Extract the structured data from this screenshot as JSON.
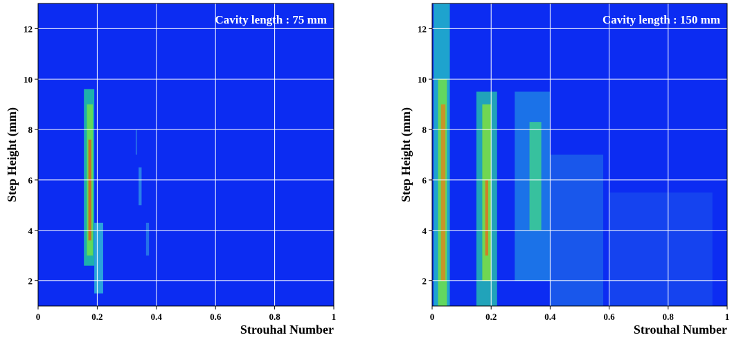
{
  "chart_data": [
    {
      "type": "heatmap",
      "annotation": "Cavity length : 75 mm",
      "xlabel": "Strouhal Number",
      "ylabel": "Step Height (mm)",
      "background": "#0c2cf2",
      "grid": true,
      "xlim": [
        0,
        1
      ],
      "ylim": [
        1,
        13
      ],
      "xticks": [
        0,
        0.2,
        0.4,
        0.6,
        0.8,
        1
      ],
      "yticks": [
        2,
        4,
        6,
        8,
        10,
        12
      ],
      "ridges": [
        {
          "x": [
            0.155,
            0.19
          ],
          "y": [
            2.6,
            9.6
          ],
          "color": "#22c8a0"
        },
        {
          "x": [
            0.165,
            0.185
          ],
          "y": [
            3,
            9
          ],
          "color": "#6ee04a"
        },
        {
          "x": [
            0.17,
            0.18
          ],
          "y": [
            3.6,
            7.6
          ],
          "color": "#e05a20"
        },
        {
          "x": [
            0.19,
            0.22
          ],
          "y": [
            1.5,
            4.3
          ],
          "color": "#30b8d8"
        },
        {
          "x": [
            0.34,
            0.35
          ],
          "y": [
            5,
            6.5
          ],
          "color": "#2f8fe6"
        },
        {
          "x": [
            0.365,
            0.375
          ],
          "y": [
            3,
            4.3
          ],
          "color": "#2a7fe8"
        },
        {
          "x": [
            0.33,
            0.335
          ],
          "y": [
            7,
            8
          ],
          "color": "#2a6ee8"
        }
      ]
    },
    {
      "type": "heatmap",
      "annotation": "Cavity length : 150 mm",
      "xlabel": "Strouhal Number",
      "ylabel": "Step Height (mm)",
      "background": "#0c2cf2",
      "grid": true,
      "xlim": [
        0,
        1
      ],
      "ylim": [
        1,
        13
      ],
      "xticks": [
        0,
        0.2,
        0.4,
        0.6,
        0.8,
        1
      ],
      "yticks": [
        2,
        4,
        6,
        8,
        10,
        12
      ],
      "ridges": [
        {
          "x": [
            0.005,
            0.06
          ],
          "y": [
            1,
            13
          ],
          "color": "#22b8c8"
        },
        {
          "x": [
            0.02,
            0.05
          ],
          "y": [
            1,
            10
          ],
          "color": "#6ee04a"
        },
        {
          "x": [
            0.03,
            0.045
          ],
          "y": [
            2,
            9
          ],
          "color": "#d88a20"
        },
        {
          "x": [
            0.15,
            0.22
          ],
          "y": [
            1,
            9.5
          ],
          "color": "#26b8b0"
        },
        {
          "x": [
            0.17,
            0.2
          ],
          "y": [
            2,
            9
          ],
          "color": "#7ee040"
        },
        {
          "x": [
            0.18,
            0.19
          ],
          "y": [
            3,
            6
          ],
          "color": "#e07020"
        },
        {
          "x": [
            0.28,
            0.4
          ],
          "y": [
            2,
            9.5
          ],
          "color": "#1f7fe6"
        },
        {
          "x": [
            0.33,
            0.37
          ],
          "y": [
            4,
            8.3
          ],
          "color": "#3ccf90"
        },
        {
          "x": [
            0.4,
            0.58
          ],
          "y": [
            1,
            7
          ],
          "color": "#1c5fea"
        },
        {
          "x": [
            0.6,
            0.95
          ],
          "y": [
            1,
            5.5
          ],
          "color": "#1848ee"
        }
      ]
    }
  ]
}
